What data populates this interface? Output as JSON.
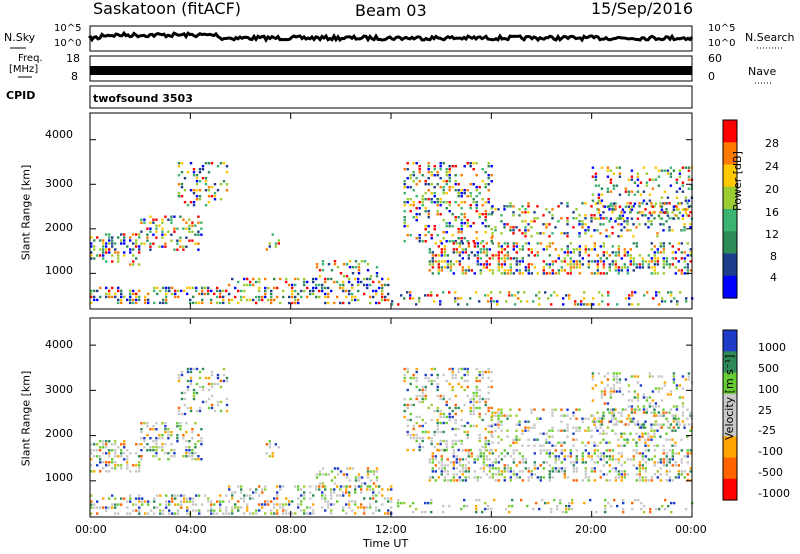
{
  "header": {
    "radar": "Saskatoon (fitACF)",
    "beam": "Beam 03",
    "date": "15/Sep/2016"
  },
  "panels": {
    "nsky_label": "N.Sky",
    "nsearch_label": "N.Search",
    "nsky_ticks": [
      "10^5",
      "10^0"
    ],
    "nsearch_ticks": [
      "10^5",
      "10^0"
    ],
    "freq_label_1": "Freq.",
    "freq_label_2": "[MHz]",
    "freq_ticks": [
      "18",
      "8"
    ],
    "nave_label": "Nave",
    "nave_ticks": [
      "60",
      "0"
    ],
    "cpid_label": "CPID",
    "cpid_value": "twofsound 3503"
  },
  "chart_data": [
    {
      "type": "heatmap",
      "title": "",
      "xlabel": "Time UT",
      "ylabel": "Slant Range [km]",
      "x_ticks": [
        "00:00",
        "04:00",
        "08:00",
        "12:00",
        "16:00",
        "20:00",
        "00:00"
      ],
      "y_ticks": [
        "1000",
        "2000",
        "3000",
        "4000"
      ],
      "ylim": [
        200,
        4600
      ],
      "colorbar_label": "Power [dB]",
      "colorbar_ticks": [
        "28",
        "24",
        "20",
        "16",
        "12",
        "8",
        "4"
      ],
      "colorbar_colors": [
        "#ff0000",
        "#ff7a00",
        "#ffc800",
        "#9acd32",
        "#3cb371",
        "#2e8b57",
        "#1e3c8c",
        "#0000ff"
      ]
    },
    {
      "type": "heatmap",
      "title": "",
      "xlabel": "Time UT",
      "ylabel": "Slant Range [km]",
      "x_ticks": [
        "00:00",
        "04:00",
        "08:00",
        "12:00",
        "16:00",
        "20:00",
        "00:00"
      ],
      "y_ticks": [
        "1000",
        "2000",
        "3000",
        "4000"
      ],
      "ylim": [
        200,
        4600
      ],
      "colorbar_label": "Velocity [m s⁻¹]",
      "colorbar_ticks": [
        "1000",
        "500",
        "100",
        "25",
        "-25",
        "-100",
        "-500",
        "-1000"
      ],
      "colorbar_colors": [
        "#1e3cc8",
        "#2e8b57",
        "#66cc33",
        "#c8c8c8",
        "#c8c8c8",
        "#ffa500",
        "#ff6400",
        "#ff0000"
      ]
    }
  ]
}
